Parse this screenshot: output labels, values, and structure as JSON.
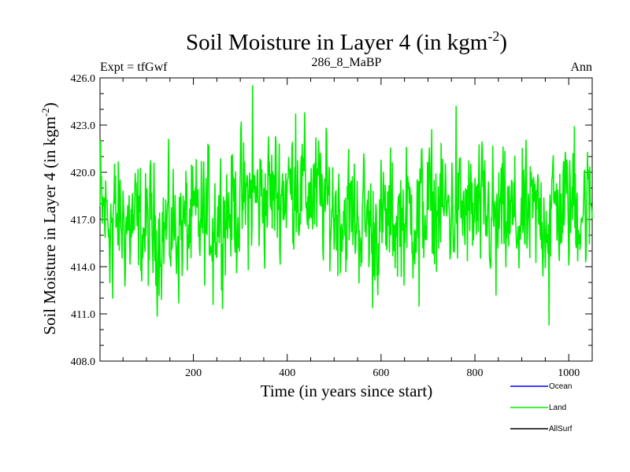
{
  "chart_data": {
    "type": "line",
    "title_main": "Soil Moisture in Layer 4 (in kgm",
    "title_exp": "-2",
    "title_close": ")",
    "subtitle_left": "Expt = tfGwf",
    "subtitle_center": "286_8_MaBP",
    "subtitle_right": "Ann",
    "xlabel": "Time (in years since start)",
    "ylabel_main": "Soil Moisture in Layer 4 (in kgm",
    "ylabel_exp": "-2",
    "ylabel_close": ")",
    "xlim": [
      1,
      1050
    ],
    "ylim": [
      408.0,
      426.0
    ],
    "xticks": [
      200,
      400,
      600,
      800,
      1000
    ],
    "xtick_labels": [
      "200",
      "400",
      "600",
      "800",
      "1000"
    ],
    "yticks": [
      408,
      411,
      414,
      417,
      420,
      423,
      426
    ],
    "ytick_labels": [
      "408.0",
      "411.0",
      "414.0",
      "417.0",
      "420.0",
      "423.0",
      "426.0"
    ],
    "series": [
      {
        "name": "Ocean",
        "color": "#0000ff",
        "values": []
      },
      {
        "name": "Land",
        "color": "#00ee00",
        "generator": {
          "x_start": 1,
          "x_end": 1050,
          "seed": 12345,
          "noise_amp": 1.9,
          "mean_knots": [
            [
              0,
              417.5
            ],
            [
              100,
              416.2
            ],
            [
              200,
              416.6
            ],
            [
              300,
              418.0
            ],
            [
              420,
              419.2
            ],
            [
              520,
              417.4
            ],
            [
              600,
              416.6
            ],
            [
              700,
              417.8
            ],
            [
              800,
              417.3
            ],
            [
              900,
              416.8
            ],
            [
              1000,
              418.0
            ],
            [
              1050,
              417.6
            ]
          ],
          "peaks": [
            [
              326,
              425.5
            ],
            [
              760,
              424.2
            ],
            [
              418,
              423.7
            ],
            [
              1012,
              422.9
            ],
            [
              2,
              422.0
            ],
            [
              958,
              410.3
            ],
            [
              582,
              411.4
            ],
            [
              681,
              411.5
            ],
            [
              242,
              411.6
            ],
            [
              28,
              412.0
            ],
            [
              845,
              412.2
            ]
          ]
        }
      },
      {
        "name": "AllSurf",
        "color": "#000000",
        "values": []
      }
    ],
    "legend_position": "bottom-right"
  }
}
